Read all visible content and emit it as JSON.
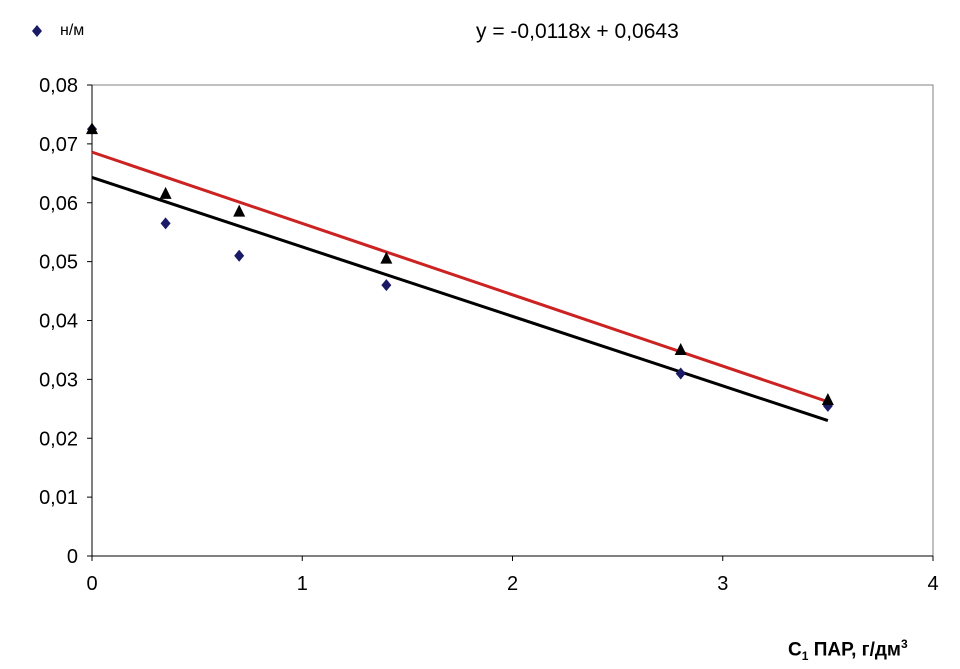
{
  "chart_data": {
    "type": "scatter",
    "legend": {
      "label": "н/м",
      "marker": "diamond",
      "color": "#1a1a66"
    },
    "annotation": "y = -0,0118x + 0,0643",
    "xlabel": {
      "main": "C",
      "sub": "1",
      "rest": " ПАР, г/дм",
      "sup": "3"
    },
    "ylabel": "",
    "xlim": [
      0,
      4
    ],
    "ylim": [
      0,
      0.08
    ],
    "xticks": [
      "0",
      "1",
      "2",
      "3",
      "4"
    ],
    "yticks": [
      "0",
      "0,01",
      "0,02",
      "0,03",
      "0,04",
      "0,05",
      "0,06",
      "0,07",
      "0,08"
    ],
    "grid": false,
    "series": [
      {
        "marker": "diamond",
        "color": "#1a1a66",
        "x": [
          0,
          0.35,
          0.7,
          1.4,
          2.8,
          3.5
        ],
        "y": [
          0.0725,
          0.0565,
          0.051,
          0.046,
          0.031,
          0.0255
        ]
      },
      {
        "marker": "triangle",
        "color": "#000000",
        "x": [
          0,
          0.35,
          0.7,
          1.4,
          2.8,
          3.5
        ],
        "y": [
          0.0725,
          0.0615,
          0.0585,
          0.0505,
          0.035,
          0.0265
        ]
      }
    ],
    "trendlines": [
      {
        "color": "#000000",
        "x": [
          0,
          3.5
        ],
        "y": [
          0.0643,
          0.023
        ]
      },
      {
        "color": "#cc2222",
        "x": [
          0,
          3.5
        ],
        "y": [
          0.0686,
          0.0262
        ]
      }
    ]
  }
}
